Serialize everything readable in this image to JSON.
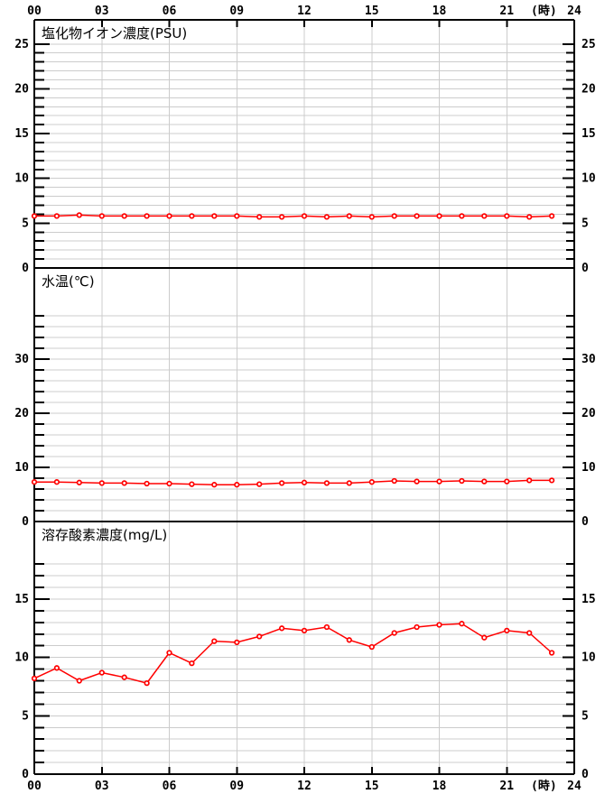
{
  "window": {
    "description": "Three stacked water-quality hourly line charts, 00-24h"
  },
  "colors": {
    "series": "#ff0000",
    "marker_fill": "#ffffff",
    "grid": "#cccccc",
    "axis": "#000000",
    "background": "#ffffff",
    "text": "#000000"
  },
  "x_axis": {
    "min": 0,
    "max": 24,
    "unit_label": "(時)",
    "tick_hours": [
      0,
      3,
      6,
      9,
      12,
      15,
      18,
      21,
      24
    ],
    "tick_labels": [
      "00",
      "03",
      "06",
      "09",
      "12",
      "15",
      "18",
      "21",
      "24"
    ],
    "labels_shown_top": true,
    "labels_shown_bottom": true
  },
  "chart_data": [
    {
      "type": "line",
      "title": "塩化物イオン濃度(PSU)",
      "ylabel": "PSU",
      "ylim": [
        0,
        27.7
      ],
      "ytick_major": [
        0,
        5,
        10,
        15,
        20,
        25
      ],
      "ytick_minor_step": 1,
      "ytick_top": 25,
      "grid": true,
      "legend": "none",
      "x": [
        0,
        1,
        2,
        3,
        4,
        5,
        6,
        7,
        8,
        9,
        10,
        11,
        12,
        13,
        14,
        15,
        16,
        17,
        18,
        19,
        20,
        21,
        22,
        23
      ],
      "values": [
        5.8,
        5.8,
        5.9,
        5.8,
        5.8,
        5.8,
        5.8,
        5.8,
        5.8,
        5.8,
        5.7,
        5.7,
        5.8,
        5.7,
        5.8,
        5.7,
        5.8,
        5.8,
        5.8,
        5.8,
        5.8,
        5.8,
        5.7,
        5.8
      ]
    },
    {
      "type": "line",
      "title": "水温(℃)",
      "ylabel": "℃",
      "ylim": [
        0,
        46.8
      ],
      "ytick_major": [
        0,
        10,
        20,
        30
      ],
      "ytick_minor_step": 2,
      "ytick_top": 38,
      "grid": true,
      "legend": "none",
      "x": [
        0,
        1,
        2,
        3,
        4,
        5,
        6,
        7,
        8,
        9,
        10,
        11,
        12,
        13,
        14,
        15,
        16,
        17,
        18,
        19,
        20,
        21,
        22,
        23
      ],
      "values": [
        7.3,
        7.3,
        7.2,
        7.1,
        7.1,
        7.0,
        7.0,
        6.9,
        6.8,
        6.8,
        6.9,
        7.1,
        7.2,
        7.1,
        7.1,
        7.3,
        7.5,
        7.4,
        7.4,
        7.5,
        7.4,
        7.4,
        7.6,
        7.6
      ]
    },
    {
      "type": "line",
      "title": "溶存酸素濃度(mg/L)",
      "ylabel": "mg/L",
      "ylim": [
        0,
        21.65
      ],
      "ytick_major": [
        0,
        5,
        10,
        15
      ],
      "ytick_minor_step": 1,
      "ytick_top": 18,
      "grid": true,
      "legend": "none",
      "x": [
        0,
        1,
        2,
        3,
        4,
        5,
        6,
        7,
        8,
        9,
        10,
        11,
        12,
        13,
        14,
        15,
        16,
        17,
        18,
        19,
        20,
        21,
        22,
        23
      ],
      "values": [
        8.2,
        9.1,
        8.0,
        8.7,
        8.3,
        7.8,
        10.4,
        9.5,
        11.4,
        11.3,
        11.8,
        12.5,
        12.3,
        12.6,
        11.5,
        10.9,
        12.1,
        12.6,
        12.8,
        12.9,
        11.7,
        12.3,
        12.1,
        10.4
      ]
    }
  ]
}
